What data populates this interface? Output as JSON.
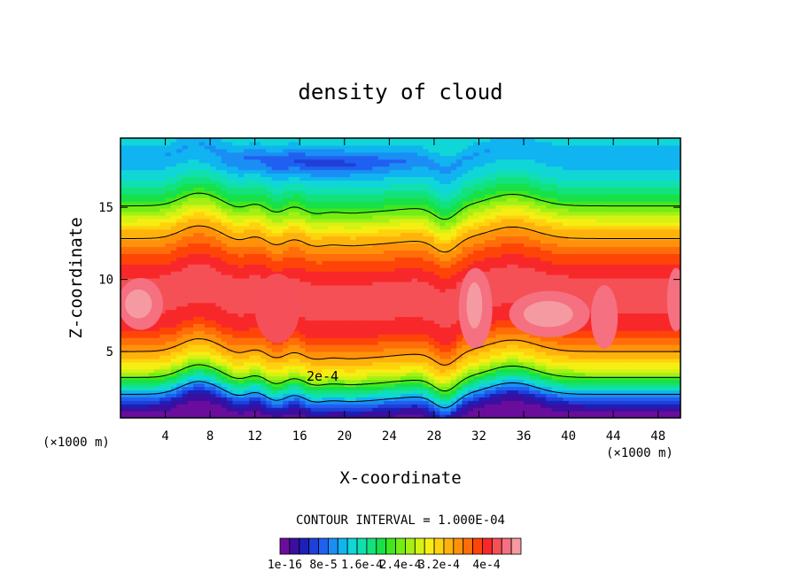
{
  "chart_data": {
    "type": "heatmap",
    "title": "density of cloud",
    "xlabel": "X-coordinate",
    "ylabel": "Z-coordinate",
    "x_unit": "(×1000 m)",
    "xlim": [
      0,
      50
    ],
    "ylim": [
      0.4,
      19.8
    ],
    "x_ticks": [
      4,
      8,
      12,
      16,
      20,
      24,
      28,
      32,
      36,
      40,
      44,
      48
    ],
    "y_ticks": [
      5,
      10,
      15
    ],
    "contour_interval_text": "CONTOUR INTERVAL = 1.000E-04",
    "contour_label": "2e-4",
    "colorbar_labels": [
      "1e-16",
      "8e-5",
      "1.6e-4",
      "2.4e-4",
      "3.2e-4",
      "4e-4"
    ],
    "colorbar_colors": [
      "#6a0d9c",
      "#3a0fa0",
      "#1a20b8",
      "#1f40d8",
      "#2060f0",
      "#1a8ef5",
      "#10b4f0",
      "#10d6d8",
      "#10e0b0",
      "#12e27c",
      "#18e048",
      "#3ee81e",
      "#72ee14",
      "#a4f014",
      "#d4f214",
      "#f6ee12",
      "#ffd20e",
      "#ffb20c",
      "#ff920a",
      "#ff6e08",
      "#ff4408",
      "#f8282a",
      "#f55056",
      "#f57080",
      "#f59aa0"
    ],
    "profile": {
      "z": [
        0.4,
        1.2,
        1.8,
        2.5,
        3.2,
        4.0,
        5.0,
        6.5,
        8.5,
        10.0,
        11.5,
        12.5,
        13.5,
        14.5,
        15.5,
        17.0,
        18.5,
        19.8
      ],
      "value": [
        3e-06,
        3e-05,
        8e-05,
        0.00014,
        0.0002,
        0.00026,
        0.0003,
        0.00035,
        0.00038,
        0.00037,
        0.00034,
        0.00031,
        0.00028,
        0.00023,
        0.00018,
        0.00013,
        0.0001,
        0.00013
      ]
    }
  }
}
